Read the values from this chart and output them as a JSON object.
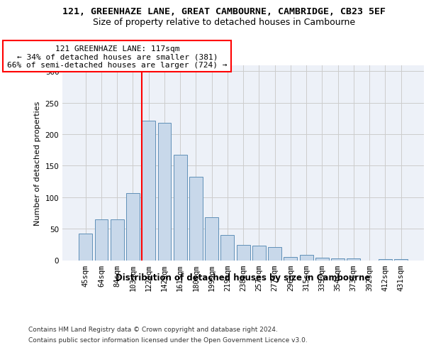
{
  "title_line1": "121, GREENHAZE LANE, GREAT CAMBOURNE, CAMBRIDGE, CB23 5EF",
  "title_line2": "Size of property relative to detached houses in Cambourne",
  "xlabel": "Distribution of detached houses by size in Cambourne",
  "ylabel": "Number of detached properties",
  "categories": [
    "45sqm",
    "64sqm",
    "84sqm",
    "103sqm",
    "122sqm",
    "142sqm",
    "161sqm",
    "180sqm",
    "199sqm",
    "219sqm",
    "238sqm",
    "257sqm",
    "277sqm",
    "296sqm",
    "315sqm",
    "335sqm",
    "354sqm",
    "373sqm",
    "392sqm",
    "412sqm",
    "431sqm"
  ],
  "values": [
    42,
    65,
    65,
    106,
    221,
    218,
    167,
    133,
    68,
    40,
    24,
    23,
    21,
    5,
    8,
    4,
    3,
    3,
    0,
    2,
    2
  ],
  "bar_color": "#c8d8ea",
  "bar_edge_color": "#6090b8",
  "vline_color": "red",
  "vline_x_idx": 4,
  "annotation_text": "121 GREENHAZE LANE: 117sqm\n← 34% of detached houses are smaller (381)\n66% of semi-detached houses are larger (724) →",
  "annotation_box_color": "white",
  "annotation_box_edge": "red",
  "ylim": [
    0,
    310
  ],
  "yticks": [
    0,
    50,
    100,
    150,
    200,
    250,
    300
  ],
  "grid_color": "#cccccc",
  "bg_color": "#edf1f8",
  "footer_line1": "Contains HM Land Registry data © Crown copyright and database right 2024.",
  "footer_line2": "Contains public sector information licensed under the Open Government Licence v3.0.",
  "title_fontsize": 9.5,
  "subtitle_fontsize": 9,
  "xlabel_fontsize": 8.5,
  "ylabel_fontsize": 8,
  "tick_fontsize": 7.5,
  "annotation_fontsize": 8,
  "footer_fontsize": 6.5
}
